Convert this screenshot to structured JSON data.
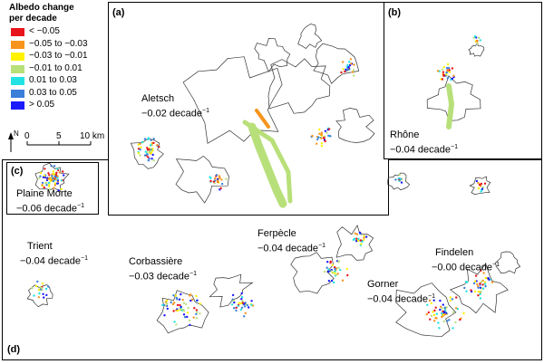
{
  "legend": {
    "title_line1": "Albedo change",
    "title_line2": "per decade",
    "items": [
      {
        "label": "< −0.05",
        "color": "#e8141b"
      },
      {
        "label": "−0.05 to −0.03",
        "color": "#f7941d"
      },
      {
        "label": "−0.03 to −0.01",
        "color": "#fff200"
      },
      {
        "label": "−0.01 to 0.01",
        "color": "#b8e07a"
      },
      {
        "label": "0.01 to 0.03",
        "color": "#22e3e3"
      },
      {
        "label": "0.03 to 0.05",
        "color": "#3b7fd9"
      },
      {
        "label": "> 0.05",
        "color": "#1a1aff"
      }
    ]
  },
  "scale_bar": {
    "t0": "0",
    "t5": "5",
    "t10": "10 km"
  },
  "north_label": "N",
  "panels": {
    "a": "(a)",
    "b": "(b)",
    "c": "(c)",
    "d": "(d)"
  },
  "glaciers": {
    "aletsch": {
      "name": "Aletsch",
      "value": "−0.02 decade",
      "exp": "−1"
    },
    "rhone": {
      "name": "Rhône",
      "value": "−0.04 decade",
      "exp": "−1"
    },
    "plaine_morte": {
      "name": "Plaine Morte",
      "value": "−0.06 decade",
      "exp": "−1"
    },
    "trient": {
      "name": "Trient",
      "value": "−0.04 decade",
      "exp": "−1"
    },
    "corbassiere": {
      "name": "Corbassière",
      "value": "−0.03 decade",
      "exp": "−1"
    },
    "ferpecle": {
      "name": "Ferpècle",
      "value": "−0.04 decade",
      "exp": "−1"
    },
    "findelen": {
      "name": "Findelen",
      "value": "−0.00 decade",
      "exp": "−1"
    },
    "gorner": {
      "name": "Gorner",
      "value": "−0.04 decade",
      "exp": "−1"
    }
  }
}
